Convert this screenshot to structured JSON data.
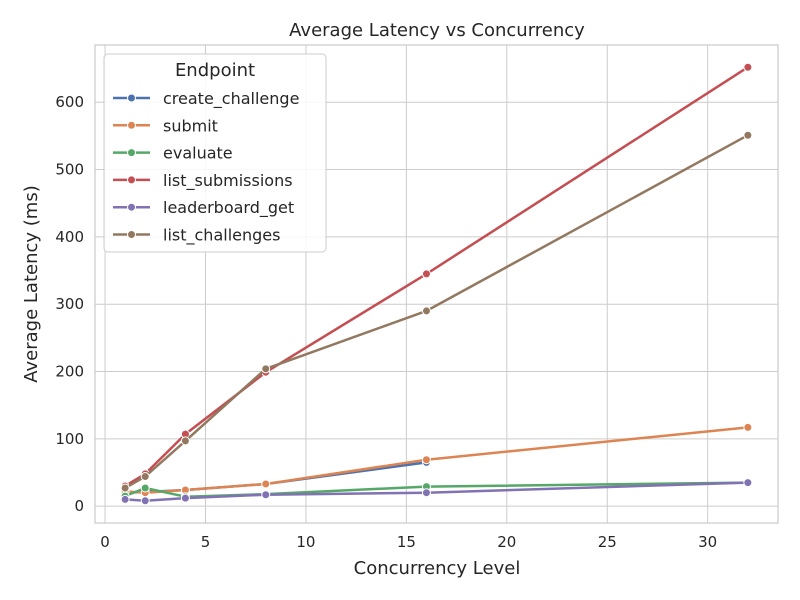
{
  "chart_data": {
    "type": "line",
    "title": "Average Latency vs Concurrency",
    "xlabel": "Concurrency Level",
    "ylabel": "Average Latency (ms)",
    "xlim": [
      -0.5,
      33.5
    ],
    "ylim": [
      -25,
      685
    ],
    "x_ticks": [
      0,
      5,
      10,
      15,
      20,
      25,
      30
    ],
    "y_ticks": [
      0,
      100,
      200,
      300,
      400,
      500,
      600
    ],
    "grid": true,
    "legend_title": "Endpoint",
    "legend_position": "upper-left",
    "series": [
      {
        "name": "create_challenge",
        "color": "#4c72b0",
        "x": [
          1,
          2,
          4,
          8,
          16
        ],
        "y": [
          20,
          21,
          24,
          33,
          65
        ]
      },
      {
        "name": "submit",
        "color": "#dd8452",
        "x": [
          1,
          2,
          4,
          8,
          16,
          32
        ],
        "y": [
          22,
          20,
          24,
          33,
          69,
          117
        ]
      },
      {
        "name": "evaluate",
        "color": "#55a868",
        "x": [
          1,
          2,
          4,
          8,
          16,
          32
        ],
        "y": [
          15,
          27,
          14,
          18,
          29,
          35
        ]
      },
      {
        "name": "list_submissions",
        "color": "#c44e52",
        "x": [
          1,
          2,
          4,
          8,
          16,
          32
        ],
        "y": [
          30,
          48,
          107,
          199,
          345,
          652
        ]
      },
      {
        "name": "leaderboard_get",
        "color": "#8172b3",
        "x": [
          1,
          2,
          4,
          8,
          16,
          32
        ],
        "y": [
          10,
          8,
          12,
          17,
          20,
          35
        ]
      },
      {
        "name": "list_challenges",
        "color": "#937860",
        "x": [
          1,
          2,
          4,
          8,
          16,
          32
        ],
        "y": [
          27,
          44,
          97,
          204,
          290,
          551
        ]
      }
    ]
  }
}
